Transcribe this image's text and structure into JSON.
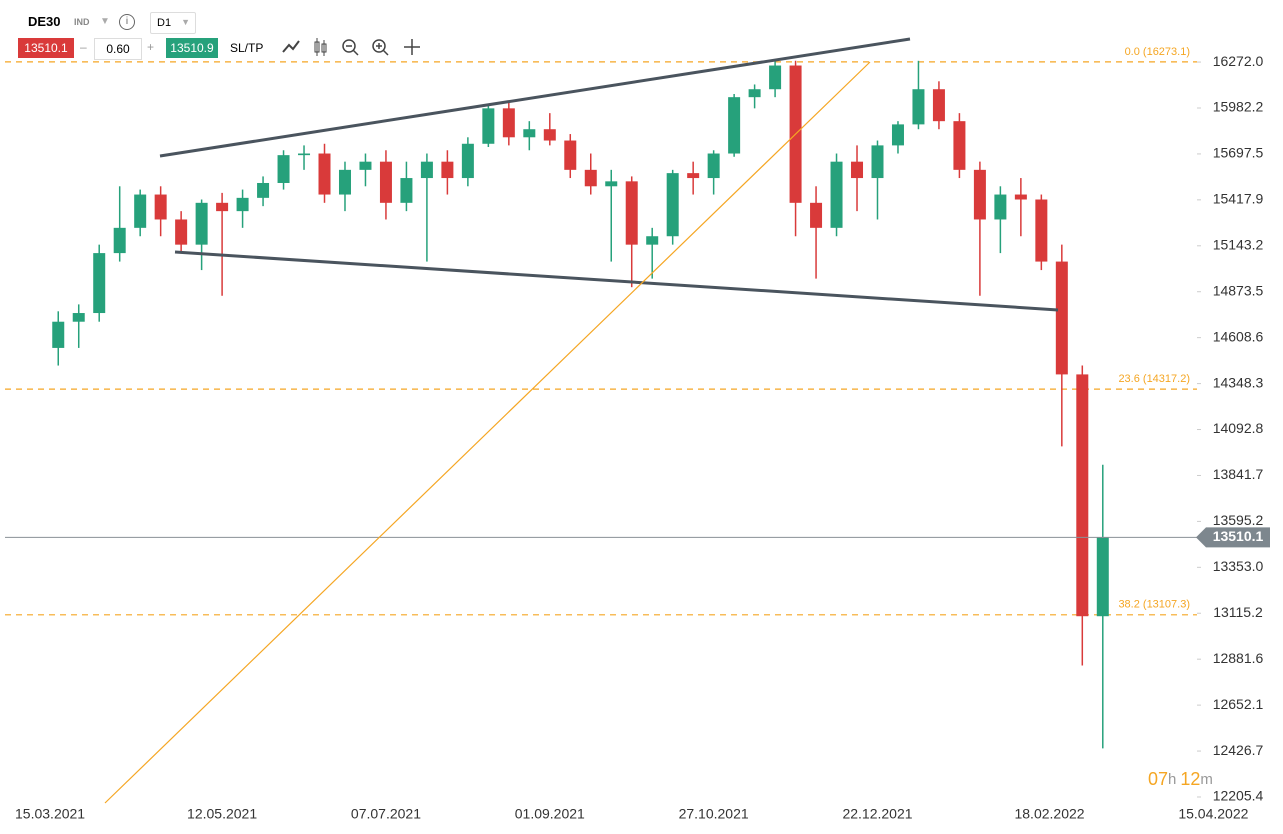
{
  "header": {
    "symbol": "DE30",
    "market": "IND",
    "timeframe": "D1",
    "sell_price": "13510.1",
    "volume": "0.60",
    "buy_price": "13510.9",
    "sltp": "SL/TP"
  },
  "timer": {
    "hours": "07",
    "h": "h",
    "minutes": "12",
    "m": "m"
  },
  "chart_data": {
    "type": "candlestick",
    "log_scale": true,
    "colors": {
      "up": "#26a17b",
      "down": "#d93a3a"
    },
    "xlim": [
      "26.02.2021",
      "11.04.2022"
    ],
    "xticks": [
      "15.03.2021",
      "12.05.2021",
      "07.07.2021",
      "01.09.2021",
      "27.10.2021",
      "22.12.2021",
      "18.02.2022",
      "15.04.2022"
    ],
    "ylim": [
      12191,
      16672
    ],
    "yticks": [
      {
        "value": 16272,
        "label": "16272.0"
      },
      15982.2,
      15697.5,
      15417.9,
      15143.2,
      14873.5,
      14608.6,
      14348.3,
      14092.8,
      13841.7,
      13595.2,
      {
        "value": 13353,
        "label": "13353.0"
      },
      13115.2,
      12881.6,
      12652.1,
      12426.7,
      12205.4
    ],
    "last_price": 13510.1,
    "fib_levels": [
      {
        "value": 16273.1,
        "label": "0.0 (16273.1)"
      },
      {
        "value": 14317.2,
        "label": "23.6 (14317.2)"
      },
      {
        "value": 13107.3,
        "label": "38.2 (13107.3)"
      }
    ],
    "x": [
      "15.03.2021",
      "22.03.2021",
      "29.03.2021",
      "05.04.2021",
      "12.04.2021",
      "19.04.2021",
      "26.04.2021",
      "03.05.2021",
      "10.05.2021",
      "17.05.2021",
      "24.05.2021",
      "31.05.2021",
      "07.06.2021",
      "14.06.2021",
      "21.06.2021",
      "28.06.2021",
      "05.07.2021",
      "12.07.2021",
      "19.07.2021",
      "26.07.2021",
      "02.08.2021",
      "09.08.2021",
      "16.08.2021",
      "23.08.2021",
      "30.08.2021",
      "06.09.2021",
      "13.09.2021",
      "20.09.2021",
      "27.09.2021",
      "04.10.2021",
      "11.10.2021",
      "18.10.2021",
      "25.10.2021",
      "01.11.2021",
      "08.11.2021",
      "15.11.2021",
      "22.11.2021",
      "29.11.2021",
      "06.12.2021",
      "13.12.2021",
      "20.12.2021",
      "27.12.2021",
      "03.01.2022",
      "10.01.2022",
      "17.01.2022",
      "24.01.2022",
      "31.01.2022",
      "07.02.2022",
      "14.02.2022",
      "21.02.2022",
      "28.02.2022",
      "07.03.2022"
    ],
    "open": [
      14550,
      14700,
      14750,
      15100,
      15250,
      15450,
      15300,
      15150,
      15400,
      15350,
      15430,
      15520,
      15690,
      15700,
      15450,
      15600,
      15650,
      15400,
      15550,
      15650,
      15550,
      15760,
      15980,
      15800,
      15850,
      15780,
      15600,
      15500,
      15530,
      15150,
      15200,
      15580,
      15550,
      15700,
      16050,
      16100,
      16250,
      15400,
      15250,
      15650,
      15550,
      15750,
      15880,
      16100,
      15900,
      15600,
      15300,
      15450,
      15420,
      15050,
      14400,
      13100
    ],
    "high": [
      14760,
      14800,
      15150,
      15500,
      15480,
      15500,
      15350,
      15420,
      15460,
      15480,
      15560,
      15720,
      15750,
      15760,
      15650,
      15700,
      15720,
      15650,
      15700,
      15720,
      15800,
      16000,
      16020,
      15900,
      15950,
      15820,
      15700,
      15600,
      15560,
      15250,
      15600,
      15650,
      15720,
      16070,
      16130,
      16290,
      16280,
      15500,
      15700,
      15750,
      15780,
      15900,
      16280,
      16150,
      15950,
      15650,
      15500,
      15550,
      15450,
      15150,
      14450,
      13900
    ],
    "low": [
      14450,
      14550,
      14700,
      15050,
      15200,
      15200,
      15100,
      15000,
      14850,
      15250,
      15380,
      15480,
      15600,
      15400,
      15350,
      15500,
      15300,
      15350,
      15050,
      15450,
      15500,
      15740,
      15750,
      15720,
      15750,
      15550,
      15450,
      15050,
      14900,
      14950,
      15150,
      15450,
      15450,
      15680,
      15980,
      16050,
      15200,
      14950,
      15200,
      15350,
      15300,
      15700,
      15850,
      15850,
      15550,
      14850,
      15100,
      15200,
      15000,
      14000,
      12850,
      12440
    ],
    "close": [
      14700,
      14750,
      15100,
      15250,
      15450,
      15300,
      15150,
      15400,
      15350,
      15430,
      15520,
      15690,
      15700,
      15450,
      15600,
      15650,
      15400,
      15550,
      15650,
      15550,
      15760,
      15980,
      15800,
      15850,
      15780,
      15600,
      15500,
      15530,
      15150,
      15200,
      15580,
      15550,
      15700,
      16050,
      16100,
      16250,
      15400,
      15250,
      15650,
      15550,
      15750,
      15880,
      16100,
      15900,
      15600,
      15300,
      15450,
      15420,
      15050,
      14400,
      13100,
      13510.1
    ]
  }
}
